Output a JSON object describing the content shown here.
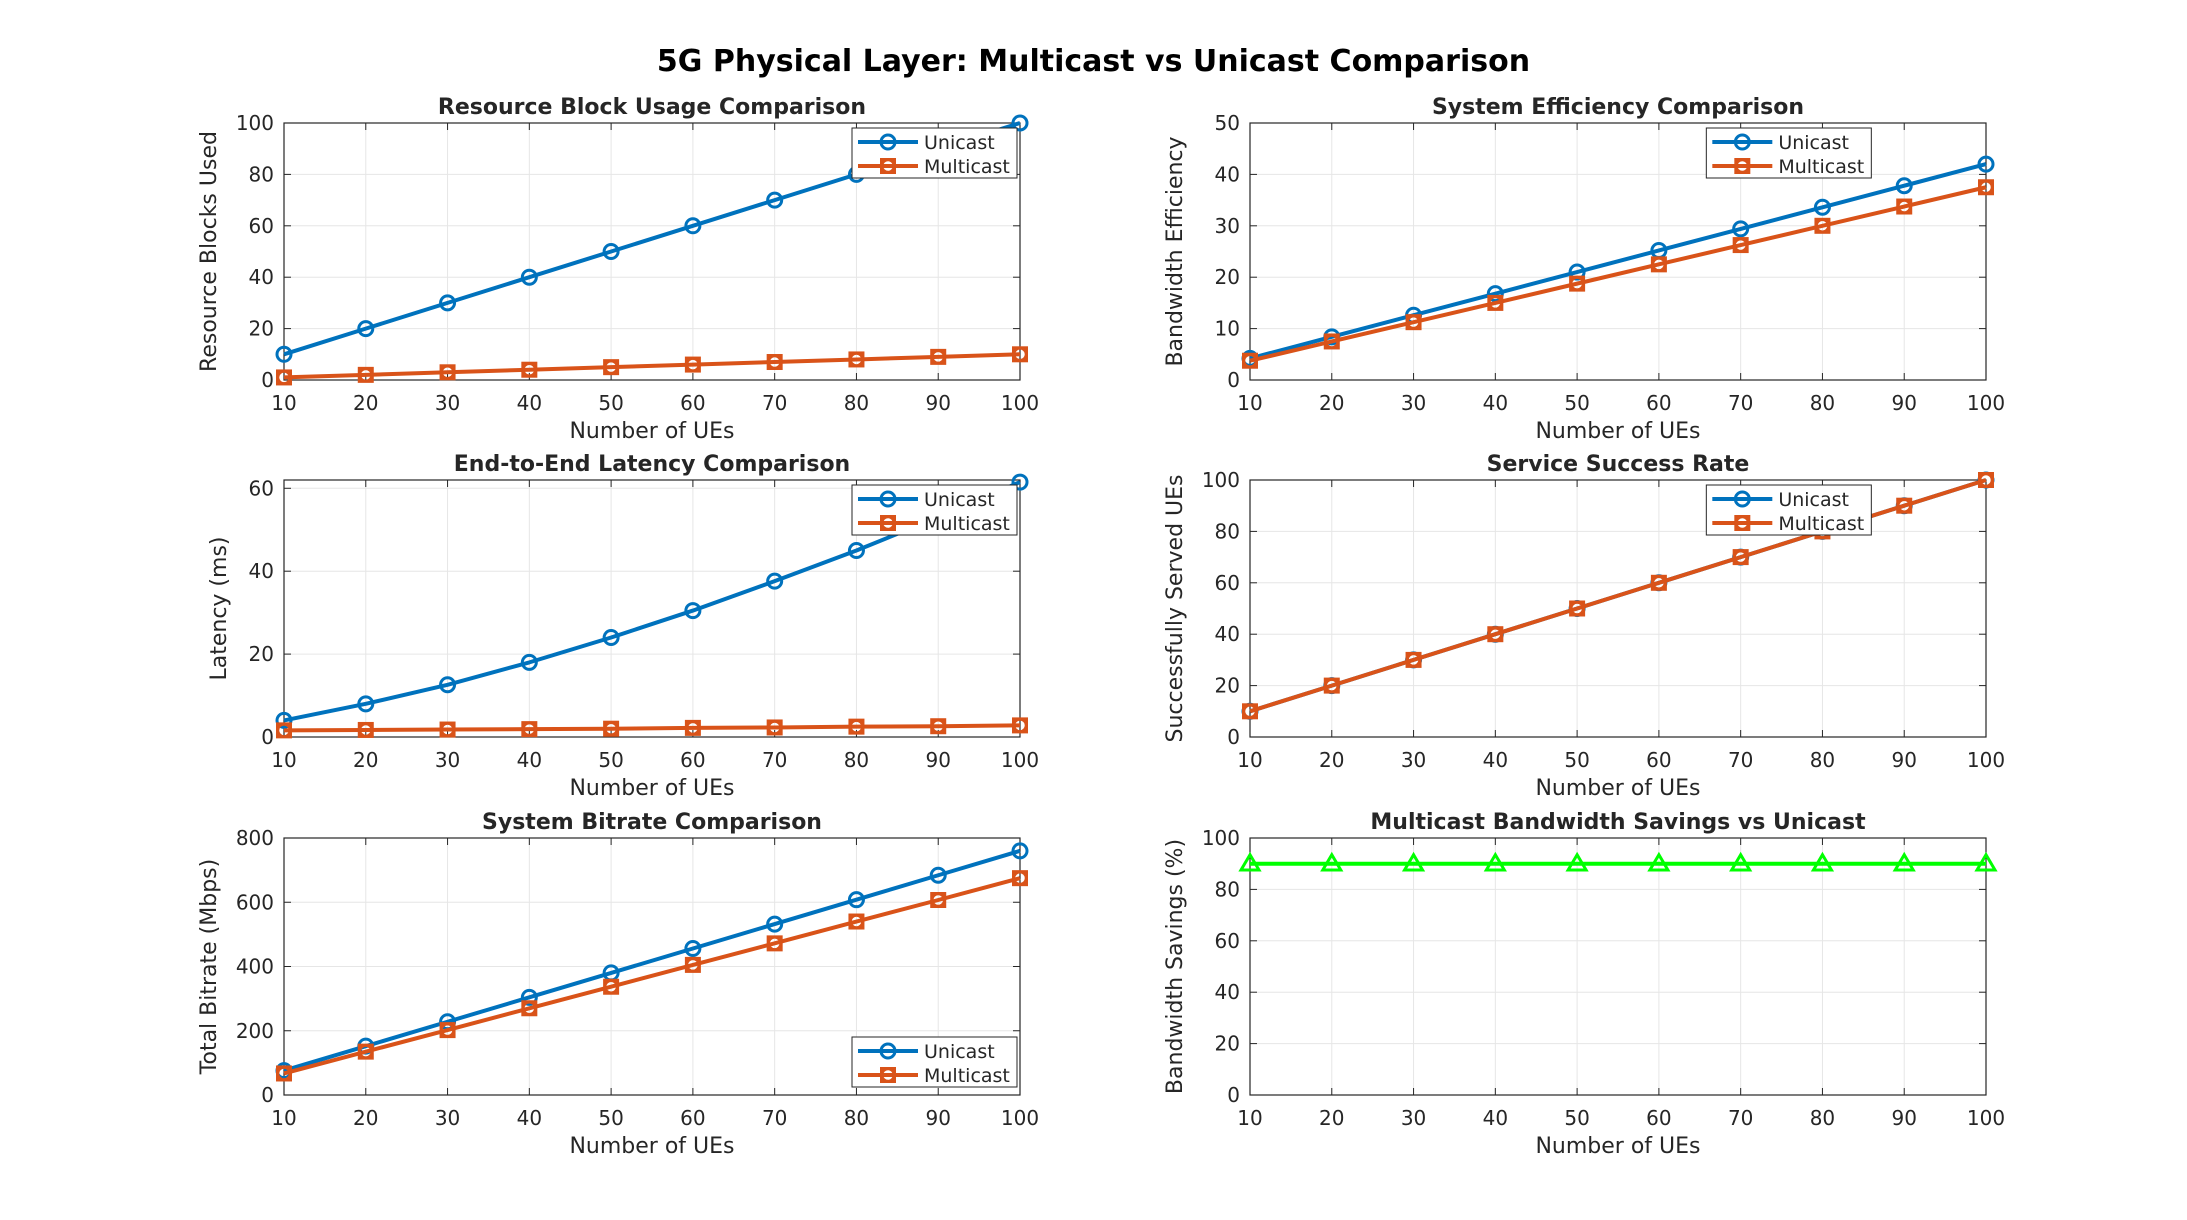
{
  "figure": {
    "title": "5G Physical Layer: Multicast vs Unicast Comparison"
  },
  "colors": {
    "unicast": "#0072BD",
    "multicast": "#D95319",
    "savings": "#00FF00",
    "grid": "#e6e6e6",
    "axis": "#262626"
  },
  "chart_data": [
    {
      "id": "rb",
      "type": "line",
      "title": "Resource Block Usage Comparison",
      "xlabel": "Number of UEs",
      "ylabel": "Resource Blocks Used",
      "xlim": [
        10,
        100
      ],
      "ylim": [
        0,
        100
      ],
      "xticks": [
        10,
        20,
        30,
        40,
        50,
        60,
        70,
        80,
        90,
        100
      ],
      "yticks": [
        0,
        20,
        40,
        60,
        80,
        100
      ],
      "grid": true,
      "legend": "top-right",
      "x": [
        10,
        20,
        30,
        40,
        50,
        60,
        70,
        80,
        90,
        100
      ],
      "series": [
        {
          "name": "Unicast",
          "color": "#0072BD",
          "marker": "circle",
          "values": [
            10,
            20,
            30,
            40,
            50,
            60,
            70,
            80,
            90,
            100
          ]
        },
        {
          "name": "Multicast",
          "color": "#D95319",
          "marker": "square-circle",
          "values": [
            1,
            2,
            3,
            4,
            5,
            6,
            7,
            8,
            9,
            10
          ]
        }
      ]
    },
    {
      "id": "eff",
      "type": "line",
      "title": "System Efficiency Comparison",
      "xlabel": "Number of UEs",
      "ylabel": "Bandwidth Efficiency",
      "xlim": [
        10,
        100
      ],
      "ylim": [
        0,
        50
      ],
      "xticks": [
        10,
        20,
        30,
        40,
        50,
        60,
        70,
        80,
        90,
        100
      ],
      "yticks": [
        0,
        10,
        20,
        30,
        40,
        50
      ],
      "grid": true,
      "legend": "top-left",
      "x": [
        10,
        20,
        30,
        40,
        50,
        60,
        70,
        80,
        90,
        100
      ],
      "series": [
        {
          "name": "Unicast",
          "color": "#0072BD",
          "marker": "circle",
          "values": [
            4.2,
            8.4,
            12.6,
            16.8,
            21,
            25.2,
            29.4,
            33.6,
            37.8,
            42
          ]
        },
        {
          "name": "Multicast",
          "color": "#D95319",
          "marker": "square-circle",
          "values": [
            3.75,
            7.5,
            11.25,
            15,
            18.75,
            22.5,
            26.25,
            30,
            33.75,
            37.5
          ]
        }
      ]
    },
    {
      "id": "lat",
      "type": "line",
      "title": "End-to-End Latency Comparison",
      "xlabel": "Number of UEs",
      "ylabel": "Latency (ms)",
      "xlim": [
        10,
        100
      ],
      "ylim": [
        0,
        62
      ],
      "xticks": [
        10,
        20,
        30,
        40,
        50,
        60,
        70,
        80,
        90,
        100
      ],
      "yticks": [
        0,
        20,
        40,
        60
      ],
      "grid": true,
      "legend": "top-right",
      "x": [
        10,
        20,
        30,
        40,
        50,
        60,
        70,
        80,
        90,
        100
      ],
      "series": [
        {
          "name": "Unicast",
          "color": "#0072BD",
          "marker": "circle",
          "values": [
            4,
            8,
            12.6,
            18,
            24,
            30.5,
            37.6,
            45,
            53,
            61.5
          ]
        },
        {
          "name": "Multicast",
          "color": "#D95319",
          "marker": "square-circle",
          "values": [
            1.6,
            1.7,
            1.8,
            1.9,
            2.0,
            2.2,
            2.3,
            2.5,
            2.6,
            2.8
          ]
        }
      ]
    },
    {
      "id": "succ",
      "type": "line",
      "title": "Service Success Rate",
      "xlabel": "Number of UEs",
      "ylabel": "Successfully Served UEs",
      "xlim": [
        10,
        100
      ],
      "ylim": [
        0,
        100
      ],
      "xticks": [
        10,
        20,
        30,
        40,
        50,
        60,
        70,
        80,
        90,
        100
      ],
      "yticks": [
        0,
        20,
        40,
        60,
        80,
        100
      ],
      "grid": true,
      "legend": "top-left",
      "x": [
        10,
        20,
        30,
        40,
        50,
        60,
        70,
        80,
        90,
        100
      ],
      "series": [
        {
          "name": "Unicast",
          "color": "#0072BD",
          "marker": "circle",
          "values": [
            10,
            20,
            30,
            40,
            50,
            60,
            70,
            80,
            90,
            100
          ]
        },
        {
          "name": "Multicast",
          "color": "#D95319",
          "marker": "square-circle",
          "values": [
            10,
            20,
            30,
            40,
            50,
            60,
            70,
            80,
            90,
            100
          ]
        }
      ]
    },
    {
      "id": "bit",
      "type": "line",
      "title": "System Bitrate Comparison",
      "xlabel": "Number of UEs",
      "ylabel": "Total Bitrate (Mbps)",
      "xlim": [
        10,
        100
      ],
      "ylim": [
        0,
        800
      ],
      "xticks": [
        10,
        20,
        30,
        40,
        50,
        60,
        70,
        80,
        90,
        100
      ],
      "yticks": [
        0,
        200,
        400,
        600,
        800
      ],
      "grid": true,
      "legend": "bottom-right",
      "x": [
        10,
        20,
        30,
        40,
        50,
        60,
        70,
        80,
        90,
        100
      ],
      "series": [
        {
          "name": "Unicast",
          "color": "#0072BD",
          "marker": "circle",
          "values": [
            76,
            152,
            228,
            304,
            380,
            456,
            532,
            608,
            684,
            760
          ]
        },
        {
          "name": "Multicast",
          "color": "#D95319",
          "marker": "square-circle",
          "values": [
            67,
            135,
            202,
            270,
            337,
            405,
            472,
            540,
            607,
            675
          ]
        }
      ]
    },
    {
      "id": "sav",
      "type": "line",
      "title": "Multicast Bandwidth Savings vs Unicast",
      "xlabel": "Number of UEs",
      "ylabel": "Bandwidth Savings (%)",
      "xlim": [
        10,
        100
      ],
      "ylim": [
        0,
        100
      ],
      "xticks": [
        10,
        20,
        30,
        40,
        50,
        60,
        70,
        80,
        90,
        100
      ],
      "yticks": [
        0,
        20,
        40,
        60,
        80,
        100
      ],
      "grid": true,
      "legend": "none",
      "x": [
        10,
        20,
        30,
        40,
        50,
        60,
        70,
        80,
        90,
        100
      ],
      "series": [
        {
          "color": "#00FF00",
          "marker": "triangle",
          "values": [
            90,
            90,
            90,
            90,
            90,
            90,
            90,
            90,
            90,
            90
          ]
        }
      ]
    }
  ]
}
